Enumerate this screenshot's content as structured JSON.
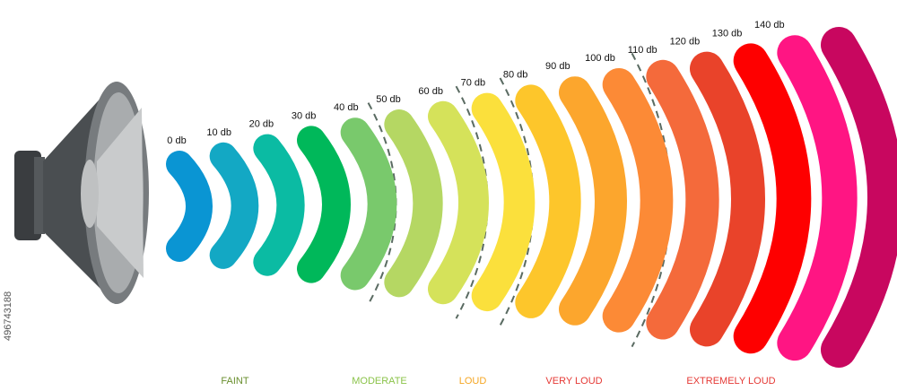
{
  "watermark_id": "496743188",
  "level_labels": [
    "0 db",
    "10 db",
    "20 db",
    "30 db",
    "40 db",
    "50 db",
    "60 db",
    "70 db",
    "80 db",
    "90 db",
    "100 db",
    "110 db",
    "120 db",
    "130 db",
    "140 db"
  ],
  "band_colors": [
    "#0a95d3",
    "#13a8c4",
    "#0bbba3",
    "#00b85a",
    "#79c96c",
    "#b5d763",
    "#d5e25a",
    "#fbe03c",
    "#fdc62b",
    "#fca62d",
    "#fc8a36",
    "#f46a3b",
    "#e9432a",
    "#fe0000",
    "#ff1583",
    "#c8075f"
  ],
  "categories": [
    {
      "label": "FAINT",
      "color": "#6a8f2f"
    },
    {
      "label": "MODERATE",
      "color": "#8bc34a"
    },
    {
      "label": "LOUD",
      "color": "#f5a623"
    },
    {
      "label": "VERY LOUD",
      "color": "#e53935"
    },
    {
      "label": "EXTREMELY LOUD",
      "color": "#e53935"
    }
  ]
}
